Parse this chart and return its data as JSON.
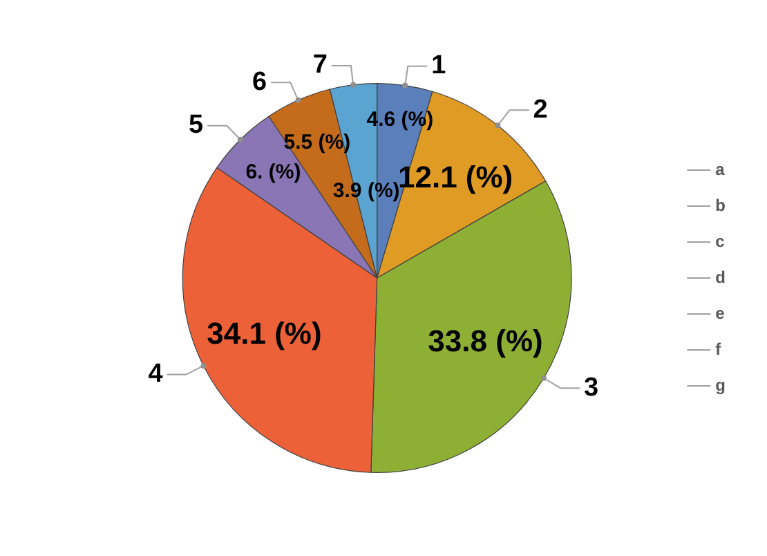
{
  "chart_data": {
    "type": "pie",
    "categories": [
      "a",
      "b",
      "c",
      "d",
      "e",
      "f",
      "g"
    ],
    "values": [
      4.6,
      12.1,
      33.8,
      34.1,
      6.0,
      5.5,
      3.9
    ],
    "value_labels": [
      "4.6 (%)",
      "12.1 (%)",
      "33.8 (%)",
      "34.1 (%)",
      "6. (%)",
      "5.5 (%)",
      "3.9 (%)"
    ],
    "colors": [
      "#5b7fbb",
      "#e09b25",
      "#8db034",
      "#ec6137",
      "#8a76b4",
      "#c56c1c",
      "#5ba3d0"
    ],
    "annotations": [
      "1",
      "2",
      "3",
      "4",
      "5",
      "6",
      "7"
    ],
    "legend": "right"
  }
}
